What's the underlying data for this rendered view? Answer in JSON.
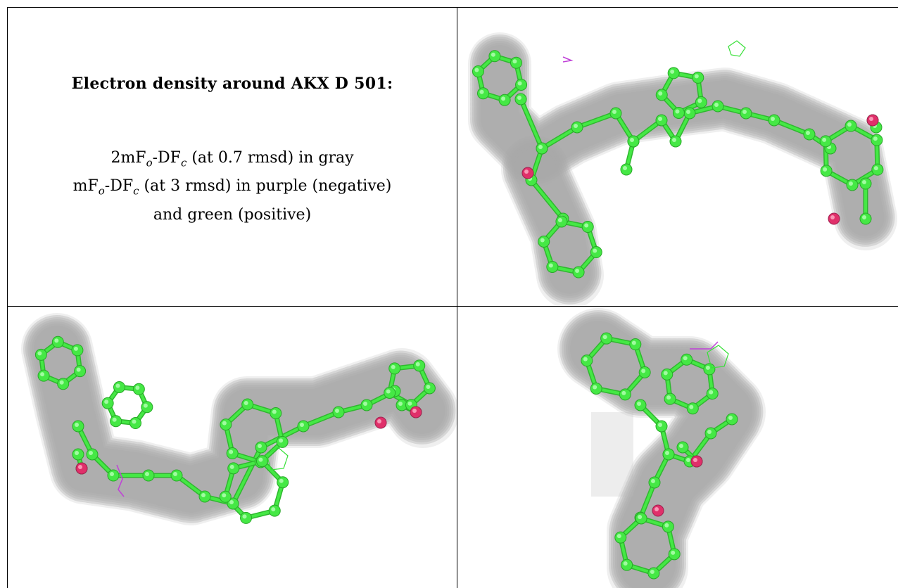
{
  "caption": {
    "title": "Electron density around AKX D 501:",
    "line1": {
      "prefix": "2mF",
      "sub1": "o",
      "mid": "-DF",
      "sub2": "c",
      "suffix": " (at 0.7 rmsd) in gray"
    },
    "line2": {
      "prefix": "mF",
      "sub1": "o",
      "mid": "-DF",
      "sub2": "c",
      "suffix": " (at 3 rmsd) in purple (negative)"
    },
    "line3": "and green (positive)"
  },
  "colors": {
    "mesh_2fofc": "#a8a8a8",
    "mesh_fofc_negative": "#c040d8",
    "mesh_fofc_positive": "#38e038",
    "carbon": "#45e845",
    "oxygen": "#e0306a"
  },
  "panels": [
    {
      "name": "view-top-right",
      "icon": "electron-density-render"
    },
    {
      "name": "view-bottom-left",
      "icon": "electron-density-render"
    },
    {
      "name": "view-bottom-right",
      "icon": "electron-density-render"
    }
  ]
}
